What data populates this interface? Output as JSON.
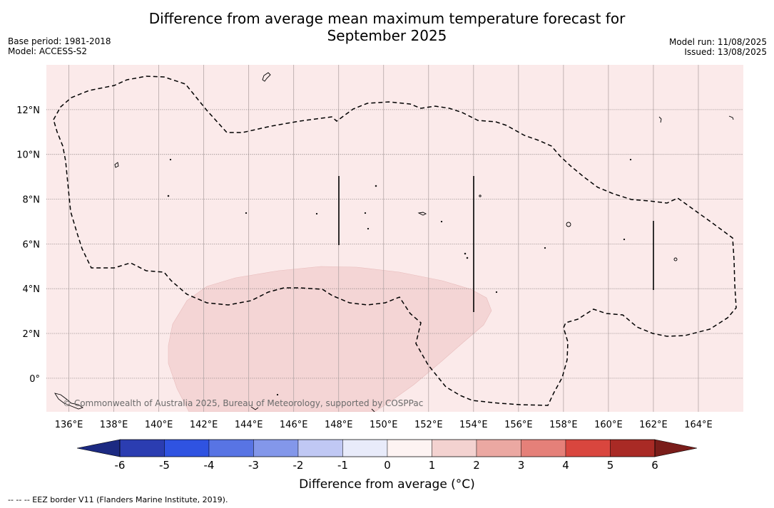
{
  "title_line1": "Difference from average mean maximum temperature forecast for",
  "title_line2": "September 2025",
  "meta_left": [
    "Base period: 1981-2018",
    "Model: ACCESS-S2"
  ],
  "meta_right": [
    "Model run: 11/08/2025",
    "Issued: 13/08/2025"
  ],
  "map": {
    "lon_range": [
      135.0,
      166.0
    ],
    "lat_range": [
      -1.5,
      14.0
    ],
    "lon_ticks": [
      "136°E",
      "138°E",
      "140°E",
      "142°E",
      "144°E",
      "146°E",
      "148°E",
      "150°E",
      "152°E",
      "154°E",
      "156°E",
      "158°E",
      "160°E",
      "162°E",
      "164°E"
    ],
    "lat_ticks": [
      "12°N",
      "10°N",
      "8°N",
      "6°N",
      "4°N",
      "2°N",
      "0°"
    ],
    "background_category": "0 to 1",
    "background_color": "#fbeaea",
    "anomaly_region_category": "1 to 2",
    "anomaly_region_color": "#f4d5d5",
    "copyright": "© Commonwealth of Australia 2025, Bureau of Meteorology, supported by COSPPac"
  },
  "colorbar": {
    "labels": [
      "-6",
      "-5",
      "-4",
      "-3",
      "-2",
      "-1",
      "0",
      "1",
      "2",
      "3",
      "4",
      "5",
      "6"
    ],
    "colors": [
      "#2b3db1",
      "#2f53e1",
      "#5874e4",
      "#8397ea",
      "#c0c8f4",
      "#e8ebfa",
      "#fdf3f2",
      "#f3d2d0",
      "#eba8a2",
      "#e58079",
      "#d9463e",
      "#a92a25"
    ],
    "low_extend_color": "#1c2a82",
    "high_extend_color": "#7a1d1a",
    "title": "Difference from average (°C)"
  },
  "footnote": "--  --  -- EEZ border V11 (Flanders Marine Institute, 2019)."
}
